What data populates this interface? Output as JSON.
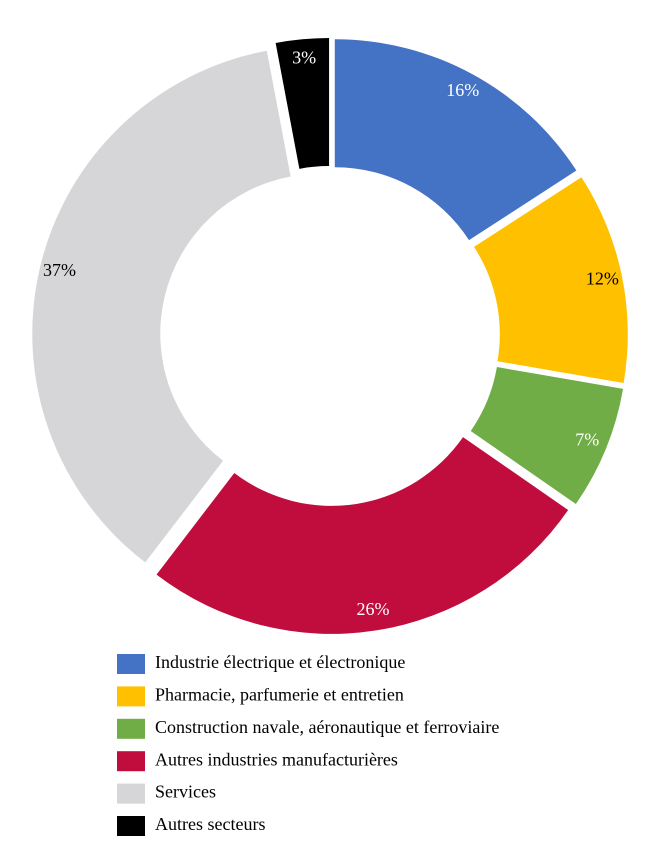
{
  "chart_data": {
    "type": "donut",
    "categories": [
      "Industrie électrique et électronique",
      "Pharmacie, parfumerie et entretien",
      "Construction navale, aéronautique et ferroviaire",
      "Autres industries manufacturières",
      "Services",
      "Autres secteurs"
    ],
    "values": [
      16,
      12,
      7,
      26,
      37,
      3
    ],
    "value_labels": [
      "16%",
      "12%",
      "7%",
      "26%",
      "37%",
      "3%"
    ],
    "colors": [
      "#4472c4",
      "#ffc000",
      "#70ad47",
      "#c00d3d",
      "#d6d6d8",
      "#000000"
    ],
    "label_colors": [
      "#ffffff",
      "#000000",
      "#ffffff",
      "#ffffff",
      "#000000",
      "#ffffff"
    ],
    "legend": "bottom"
  }
}
